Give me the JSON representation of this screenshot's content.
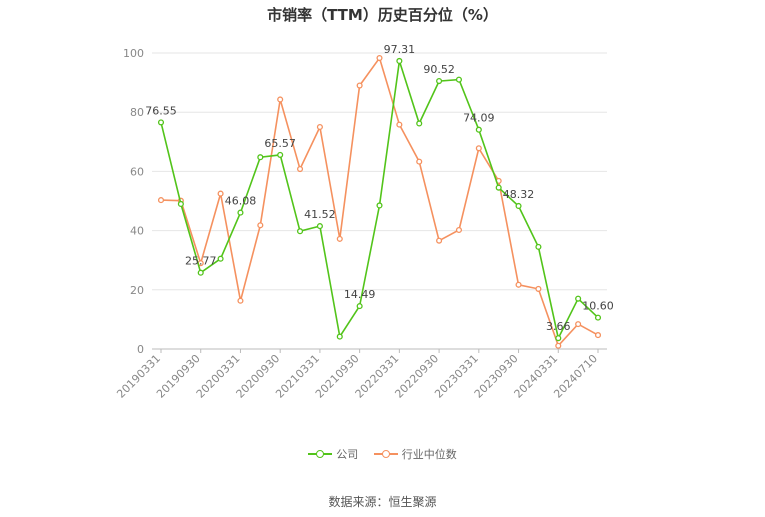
{
  "chart_data": {
    "type": "line",
    "title": "市销率（TTM）历史百分位（%）",
    "source": "数据来源：恒生聚源",
    "ylim": [
      0,
      100
    ],
    "yticks": [
      0,
      20,
      40,
      60,
      80,
      100
    ],
    "grid": true,
    "legend_position": "bottom",
    "x_tick_labels": [
      "20190331",
      "20190930",
      "20200331",
      "20200930",
      "20210331",
      "20210930",
      "20220331",
      "20220930",
      "20230331",
      "20230930",
      "20240331",
      "20240710"
    ],
    "x": [
      "20190331",
      "20190630",
      "20190930",
      "20191231",
      "20200331",
      "20200630",
      "20200930",
      "20201231",
      "20210331",
      "20210630",
      "20210930",
      "20211231",
      "20220331",
      "20220630",
      "20220930",
      "20221231",
      "20230331",
      "20230630",
      "20230930",
      "20231231",
      "20240331",
      "20240630",
      "20240710"
    ],
    "series": [
      {
        "name": "公司",
        "color": "#52c41a",
        "values": [
          76.55,
          49,
          25.77,
          30.5,
          46.08,
          64.8,
          65.57,
          39.8,
          41.52,
          4.2,
          14.49,
          48.5,
          97.31,
          76.2,
          90.52,
          91,
          74.09,
          54.5,
          48.32,
          34.5,
          3.66,
          17,
          10.6
        ]
      },
      {
        "name": "行业中位数",
        "color": "#f5915f",
        "values": [
          50.3,
          50.1,
          29,
          52.5,
          16.3,
          41.8,
          84.3,
          60.8,
          75,
          37.2,
          89,
          98.3,
          75.8,
          63.3,
          36.6,
          40.2,
          67.8,
          56.8,
          21.7,
          20.3,
          1.1,
          8.4,
          4.7
        ]
      }
    ],
    "labels": [
      {
        "series": 0,
        "index": 0,
        "text": "76.55"
      },
      {
        "series": 0,
        "index": 2,
        "text": "25.77"
      },
      {
        "series": 0,
        "index": 4,
        "text": "46.08"
      },
      {
        "series": 0,
        "index": 6,
        "text": "65.57"
      },
      {
        "series": 0,
        "index": 8,
        "text": "41.52"
      },
      {
        "series": 0,
        "index": 10,
        "text": "14.49"
      },
      {
        "series": 0,
        "index": 12,
        "text": "97.31"
      },
      {
        "series": 0,
        "index": 14,
        "text": "90.52"
      },
      {
        "series": 0,
        "index": 16,
        "text": "74.09"
      },
      {
        "series": 0,
        "index": 18,
        "text": "48.32"
      },
      {
        "series": 0,
        "index": 20,
        "text": "3.66"
      },
      {
        "series": 0,
        "index": 22,
        "text": "10.60"
      }
    ]
  }
}
